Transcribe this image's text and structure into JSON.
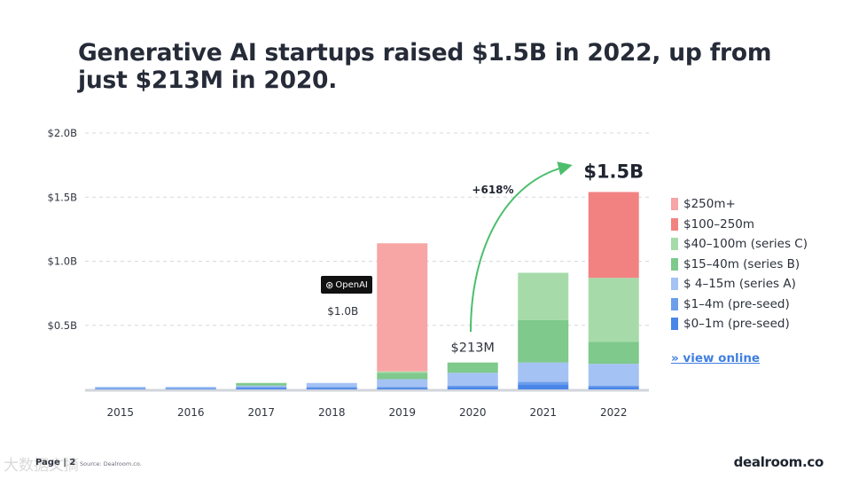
{
  "title": "Generative AI startups raised $1.5B in 2022, up from just $213M in 2020.",
  "chart_data": {
    "type": "bar",
    "stacked": true,
    "title": "Generative AI startups raised $1.5B in 2022, up from just $213M in 2020.",
    "categories": [
      "2015",
      "2016",
      "2017",
      "2018",
      "2019",
      "2020",
      "2021",
      "2022"
    ],
    "ylim": [
      0,
      2.0
    ],
    "y_unit": "$B",
    "yticks": [
      {
        "value": 0.5,
        "label": "$0.5B"
      },
      {
        "value": 1.0,
        "label": "$1.0B"
      },
      {
        "value": 1.5,
        "label": "$1.5B"
      },
      {
        "value": 2.0,
        "label": "$2.0B"
      }
    ],
    "grid": true,
    "series": [
      {
        "name": "$0–1m (pre-seed)",
        "color": "#4a86e8",
        "values": [
          0.005,
          0.005,
          0.01,
          0.01,
          0.01,
          0.02,
          0.04,
          0.02
        ]
      },
      {
        "name": "$1–4m (pre-seed)",
        "color": "#6d9eeb",
        "values": [
          0.005,
          0.005,
          0.01,
          0.01,
          0.01,
          0.01,
          0.02,
          0.01
        ]
      },
      {
        "name": "$ 4–15m (series A)",
        "color": "#a4c2f4",
        "values": [
          0.01,
          0.01,
          0.01,
          0.03,
          0.06,
          0.1,
          0.15,
          0.17
        ]
      },
      {
        "name": "$15–40m (series B)",
        "color": "#7ec98b",
        "values": [
          0.0,
          0.0,
          0.02,
          0.0,
          0.05,
          0.08,
          0.33,
          0.17
        ]
      },
      {
        "name": "$40–100m (series C)",
        "color": "#a6dba9",
        "values": [
          0.0,
          0.0,
          0.0,
          0.0,
          0.01,
          0.0,
          0.37,
          0.5
        ]
      },
      {
        "name": "$100–250m",
        "color": "#f28282",
        "values": [
          0.0,
          0.0,
          0.0,
          0.0,
          0.0,
          0.0,
          0.0,
          0.67
        ]
      },
      {
        "name": "$250m+",
        "color": "#f7a5a5",
        "values": [
          0.0,
          0.0,
          0.0,
          0.0,
          1.0,
          0.0,
          0.0,
          0.0
        ]
      }
    ],
    "annotations": {
      "bar_label_2020": "$213M",
      "bar_label_2022": "$1.5B",
      "growth_label": "+618%",
      "openai_label": "$1.0B"
    }
  },
  "legend_items": [
    {
      "label": "$250m+",
      "color": "#f7a5a5"
    },
    {
      "label": "$100–250m",
      "color": "#f28282"
    },
    {
      "label": "$40–100m (series C)",
      "color": "#a6dba9"
    },
    {
      "label": "$15–40m (series B)",
      "color": "#7ec98b"
    },
    {
      "label": "$ 4–15m (series A)",
      "color": "#a4c2f4"
    },
    {
      "label": "$1–4m (pre-seed)",
      "color": "#6d9eeb"
    },
    {
      "label": "$0–1m (pre-seed)",
      "color": "#4a86e8"
    }
  ],
  "view_online": "» view online",
  "openai_logo_text": "OpenAI",
  "footer": {
    "page": "Page | 2",
    "source": "Source: Dealroom.co."
  },
  "brand": "dealroom.co",
  "watermark": "大数据文摘"
}
